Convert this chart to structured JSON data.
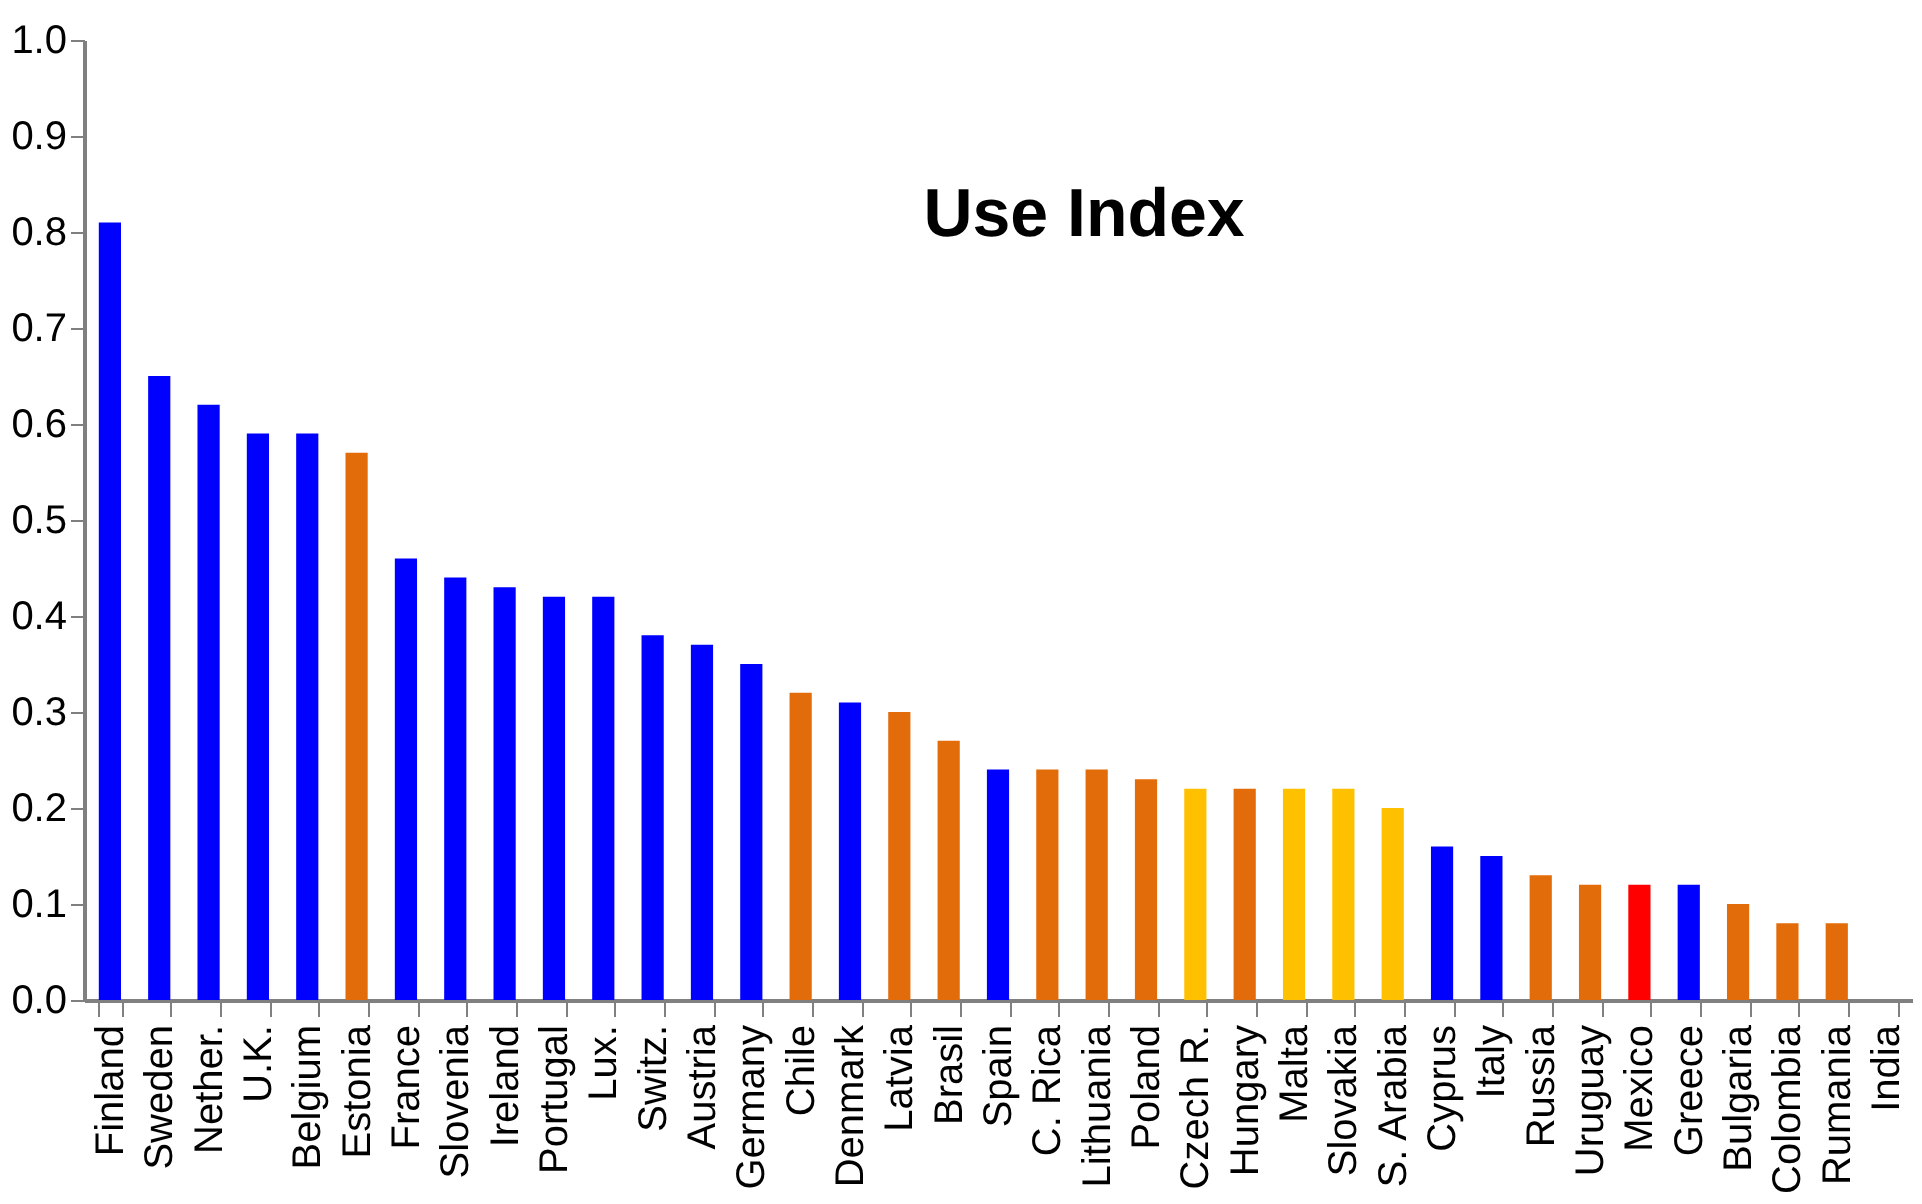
{
  "chart_data": {
    "type": "bar",
    "title": "Use Index",
    "categories": [
      "Finland",
      "Sweden",
      "Nether.",
      "U.K.",
      "Belgium",
      "Estonia",
      "France",
      "Slovenia",
      "Ireland",
      "Portugal",
      "Lux.",
      "Switz.",
      "Austria",
      "Germany",
      "Chile",
      "Denmark",
      "Latvia",
      "Brasil",
      "Spain",
      "C. Rica",
      "Lithuania",
      "Poland",
      "Czech R.",
      "Hungary",
      "Malta",
      "Slovakia",
      "S. Arabia",
      "Cyprus",
      "Italy",
      "Russia",
      "Uruguay",
      "Mexico",
      "Greece",
      "Bulgaria",
      "Colombia",
      "Rumania",
      "India"
    ],
    "values": [
      0.81,
      0.65,
      0.62,
      0.59,
      0.59,
      0.57,
      0.46,
      0.44,
      0.43,
      0.42,
      0.42,
      0.38,
      0.37,
      0.35,
      0.32,
      0.31,
      0.3,
      0.27,
      0.24,
      0.24,
      0.24,
      0.23,
      0.22,
      0.22,
      0.22,
      0.22,
      0.2,
      0.16,
      0.15,
      0.13,
      0.12,
      0.12,
      0.12,
      0.1,
      0.08,
      0.08,
      0
    ],
    "colors": [
      "#0000ff",
      "#0000ff",
      "#0000ff",
      "#0000ff",
      "#0000ff",
      "#e36c0a",
      "#0000ff",
      "#0000ff",
      "#0000ff",
      "#0000ff",
      "#0000ff",
      "#0000ff",
      "#0000ff",
      "#0000ff",
      "#e36c0a",
      "#0000ff",
      "#e36c0a",
      "#e36c0a",
      "#0000ff",
      "#e36c0a",
      "#e36c0a",
      "#e36c0a",
      "#ffc000",
      "#e36c0a",
      "#ffc000",
      "#ffc000",
      "#ffc000",
      "#0000ff",
      "#0000ff",
      "#e36c0a",
      "#e36c0a",
      "#ff0000",
      "#0000ff",
      "#e36c0a",
      "#e36c0a",
      "#e36c0a",
      "#e36c0a"
    ],
    "ylim": [
      0,
      1.0
    ],
    "yticks": [
      {
        "value": 0,
        "label": "0.0"
      },
      {
        "value": 0.1,
        "label": "0.1"
      },
      {
        "value": 0.2,
        "label": "0.2"
      },
      {
        "value": 0.3,
        "label": "0.3"
      },
      {
        "value": 0.4,
        "label": "0.4"
      },
      {
        "value": 0.5,
        "label": "0.5"
      },
      {
        "value": 0.6,
        "label": "0.6"
      },
      {
        "value": 0.7,
        "label": "0.7"
      },
      {
        "value": 0.8,
        "label": "0.8"
      },
      {
        "value": 0.9,
        "label": "0.9"
      },
      {
        "value": 1.0,
        "label": "1.0"
      }
    ],
    "grid": false
  }
}
